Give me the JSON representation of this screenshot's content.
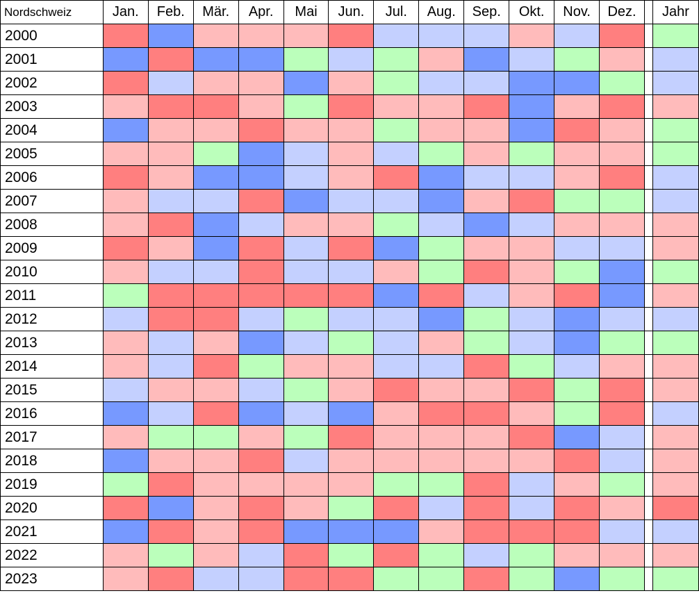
{
  "chart_data": {
    "type": "heatmap",
    "title": "Nordschweiz",
    "columns": [
      "Jan.",
      "Feb.",
      "Mär.",
      "Apr.",
      "Mai",
      "Jun.",
      "Jul.",
      "Aug.",
      "Sep.",
      "Okt.",
      "Nov.",
      "Dez."
    ],
    "annual_column": "Jahr",
    "rows": [
      "2000",
      "2001",
      "2002",
      "2003",
      "2004",
      "2005",
      "2006",
      "2007",
      "2008",
      "2009",
      "2010",
      "2011",
      "2012",
      "2013",
      "2014",
      "2015",
      "2016",
      "2017",
      "2018",
      "2019",
      "2020",
      "2021",
      "2022",
      "2023"
    ],
    "category_colors": {
      "R": "#ff7f7f",
      "r": "#ffbbbb",
      "g": "#bbffbb",
      "b": "#c4d0ff",
      "B": "#7799ff"
    },
    "values": [
      [
        "R",
        "B",
        "r",
        "r",
        "r",
        "R",
        "b",
        "b",
        "b",
        "r",
        "b",
        "R",
        "g"
      ],
      [
        "B",
        "R",
        "B",
        "B",
        "g",
        "b",
        "g",
        "r",
        "B",
        "b",
        "g",
        "r",
        "b"
      ],
      [
        "R",
        "b",
        "r",
        "r",
        "B",
        "r",
        "g",
        "b",
        "b",
        "B",
        "B",
        "g",
        "b"
      ],
      [
        "r",
        "R",
        "R",
        "r",
        "g",
        "R",
        "r",
        "r",
        "R",
        "B",
        "r",
        "R",
        "r"
      ],
      [
        "B",
        "r",
        "r",
        "R",
        "r",
        "r",
        "g",
        "r",
        "r",
        "B",
        "R",
        "r",
        "g"
      ],
      [
        "r",
        "r",
        "g",
        "B",
        "b",
        "r",
        "b",
        "g",
        "r",
        "g",
        "r",
        "r",
        "g"
      ],
      [
        "R",
        "r",
        "B",
        "B",
        "b",
        "r",
        "R",
        "B",
        "b",
        "b",
        "r",
        "R",
        "b"
      ],
      [
        "r",
        "b",
        "b",
        "R",
        "B",
        "b",
        "b",
        "B",
        "r",
        "R",
        "g",
        "g",
        "b"
      ],
      [
        "r",
        "R",
        "B",
        "b",
        "r",
        "r",
        "g",
        "b",
        "B",
        "b",
        "r",
        "r",
        "r"
      ],
      [
        "R",
        "r",
        "B",
        "R",
        "b",
        "R",
        "B",
        "g",
        "r",
        "r",
        "b",
        "b",
        "r"
      ],
      [
        "r",
        "b",
        "b",
        "R",
        "b",
        "b",
        "r",
        "g",
        "R",
        "r",
        "g",
        "B",
        "g"
      ],
      [
        "g",
        "R",
        "R",
        "R",
        "R",
        "R",
        "B",
        "R",
        "b",
        "r",
        "R",
        "B",
        "r"
      ],
      [
        "b",
        "R",
        "R",
        "b",
        "g",
        "b",
        "b",
        "B",
        "g",
        "b",
        "B",
        "b",
        "b"
      ],
      [
        "r",
        "b",
        "r",
        "B",
        "b",
        "g",
        "b",
        "r",
        "g",
        "b",
        "B",
        "g",
        "g"
      ],
      [
        "r",
        "b",
        "R",
        "g",
        "r",
        "r",
        "b",
        "b",
        "R",
        "g",
        "b",
        "r",
        "r"
      ],
      [
        "b",
        "r",
        "r",
        "b",
        "g",
        "r",
        "R",
        "r",
        "r",
        "R",
        "g",
        "R",
        "r"
      ],
      [
        "B",
        "b",
        "R",
        "B",
        "b",
        "B",
        "r",
        "R",
        "R",
        "r",
        "g",
        "R",
        "b"
      ],
      [
        "r",
        "g",
        "g",
        "r",
        "g",
        "R",
        "r",
        "r",
        "r",
        "R",
        "B",
        "b",
        "r"
      ],
      [
        "B",
        "r",
        "r",
        "R",
        "b",
        "r",
        "r",
        "r",
        "r",
        "r",
        "R",
        "b",
        "r"
      ],
      [
        "g",
        "R",
        "r",
        "r",
        "r",
        "r",
        "g",
        "g",
        "R",
        "b",
        "r",
        "g",
        "r"
      ],
      [
        "R",
        "B",
        "r",
        "R",
        "r",
        "g",
        "R",
        "b",
        "R",
        "b",
        "R",
        "r",
        "R"
      ],
      [
        "B",
        "R",
        "r",
        "R",
        "B",
        "B",
        "B",
        "r",
        "R",
        "R",
        "R",
        "b",
        "b"
      ],
      [
        "r",
        "g",
        "r",
        "b",
        "R",
        "g",
        "R",
        "g",
        "b",
        "g",
        "r",
        "r",
        "r"
      ],
      [
        "r",
        "R",
        "b",
        "b",
        "R",
        "R",
        "g",
        "g",
        "R",
        "g",
        "B",
        "g",
        "g"
      ]
    ],
    "grid": true,
    "legend": "none"
  }
}
